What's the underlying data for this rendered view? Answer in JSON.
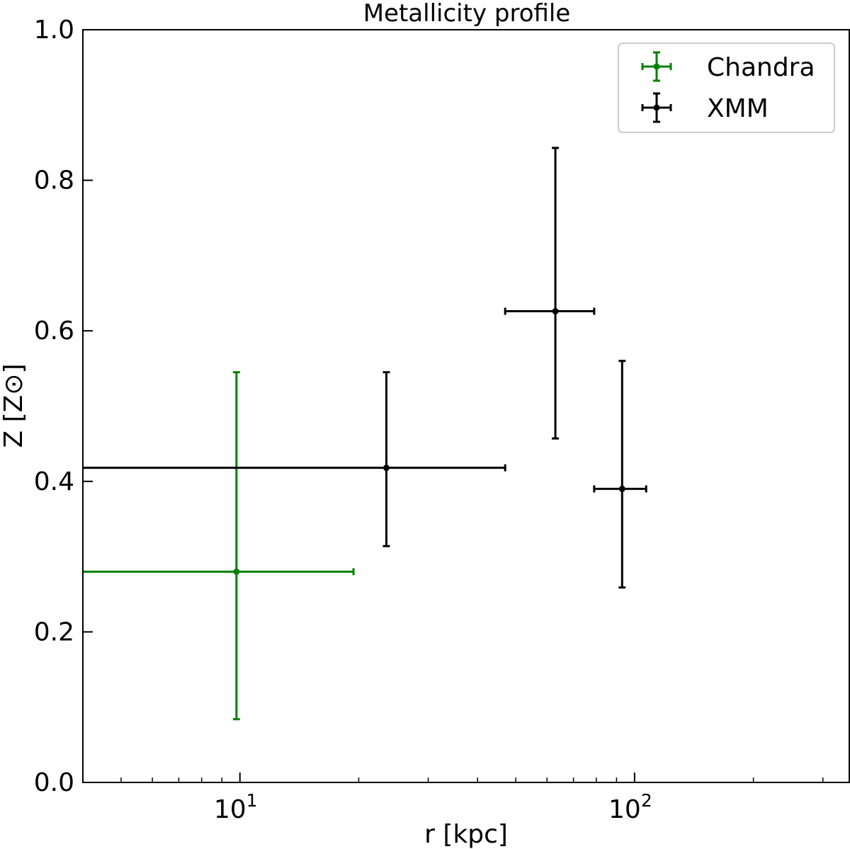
{
  "chart_data": {
    "type": "scatter",
    "title": "Metallicity profile",
    "xlabel": "r [kpc]",
    "ylabel": "Z [Z⊙]",
    "x_scale": "log",
    "xlim": [
      4,
      350
    ],
    "ylim": [
      0,
      1.0
    ],
    "yticks": [
      "0.0",
      "0.2",
      "0.4",
      "0.6",
      "0.8",
      "1.0"
    ],
    "xticks": [
      {
        "value": 10,
        "base": "10",
        "exp": "1"
      },
      {
        "value": 100,
        "base": "10",
        "exp": "2"
      }
    ],
    "grid": false,
    "legend_position": "top-right",
    "series": [
      {
        "name": "Chandra",
        "color": "#008000",
        "points": [
          {
            "x": 9.8,
            "y": 0.28,
            "xlo": 0,
            "xhi": 19.4,
            "ylo": 0.084,
            "yhi": 0.545
          }
        ]
      },
      {
        "name": "XMM",
        "color": "#000000",
        "points": [
          {
            "x": 23.5,
            "y": 0.418,
            "xlo": 0,
            "xhi": 47,
            "ylo": 0.314,
            "yhi": 0.545
          },
          {
            "x": 63,
            "y": 0.626,
            "xlo": 47,
            "xhi": 79,
            "ylo": 0.457,
            "yhi": 0.843
          },
          {
            "x": 93,
            "y": 0.39,
            "xlo": 79,
            "xhi": 107,
            "ylo": 0.259,
            "yhi": 0.56
          }
        ]
      }
    ]
  }
}
